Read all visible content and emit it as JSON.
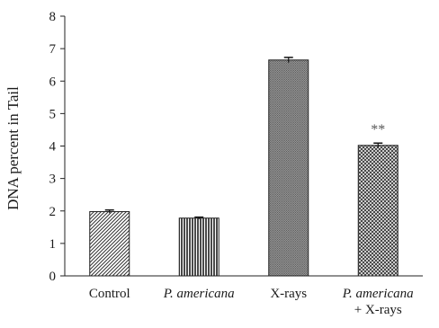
{
  "chart_data": {
    "type": "bar",
    "title": "",
    "xlabel": "",
    "ylabel": "DNA percent in Tail",
    "ylim": [
      0,
      8
    ],
    "yticks": [
      0,
      1,
      2,
      3,
      4,
      5,
      6,
      7,
      8
    ],
    "grid": false,
    "legend": "none",
    "categories": [
      {
        "lines": [
          "Control"
        ],
        "italic_lines": [
          false
        ]
      },
      {
        "lines": [
          "P. americana"
        ],
        "italic_lines": [
          true
        ]
      },
      {
        "lines": [
          "X-rays"
        ],
        "italic_lines": [
          false
        ]
      },
      {
        "lines": [
          "P. americana",
          "+ X-rays"
        ],
        "italic_lines": [
          true,
          false
        ]
      }
    ],
    "values": [
      1.98,
      1.78,
      6.65,
      4.02
    ],
    "errors": [
      0.05,
      0.03,
      0.08,
      0.07
    ],
    "patterns": [
      "diagonal-hatch",
      "vertical-lines",
      "fine-dots",
      "crosshatch"
    ],
    "annotations": [
      {
        "category_index": 3,
        "text": "**"
      }
    ],
    "colors": {
      "bar_stroke": "#222222",
      "axis": "#222222",
      "annotation": "#555555"
    }
  }
}
